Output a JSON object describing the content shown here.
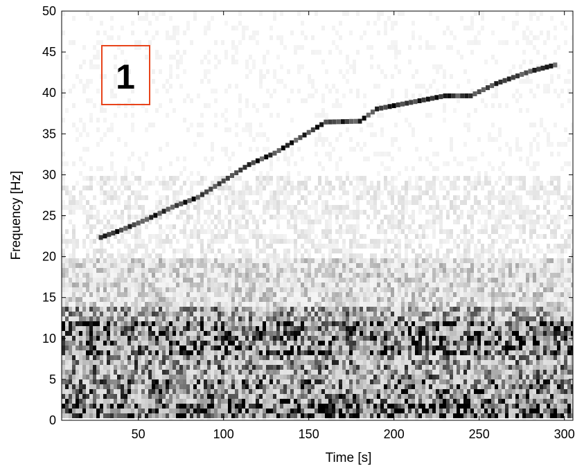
{
  "chart_data": {
    "type": "heatmap",
    "title": "",
    "xlabel": "Time [s]",
    "ylabel": "Frequency [Hz]",
    "xlim": [
      5,
      305
    ],
    "ylim": [
      0,
      50
    ],
    "xticks": [
      50,
      100,
      150,
      200,
      250,
      300
    ],
    "yticks": [
      0,
      5,
      10,
      15,
      20,
      25,
      30,
      35,
      40,
      45,
      50
    ],
    "colormap": "grayscale (white = low, black = high)",
    "grid": false,
    "annotation": {
      "text": "1",
      "box_color": "#e8431a"
    },
    "tonal_trace": {
      "description": "upward-sweeping tone",
      "points": [
        {
          "x": 28,
          "y": 22.3
        },
        {
          "x": 40,
          "y": 23.2
        },
        {
          "x": 55,
          "y": 24.5
        },
        {
          "x": 70,
          "y": 26.0
        },
        {
          "x": 85,
          "y": 27.2
        },
        {
          "x": 100,
          "y": 29.2
        },
        {
          "x": 115,
          "y": 31.2
        },
        {
          "x": 130,
          "y": 32.6
        },
        {
          "x": 145,
          "y": 34.5
        },
        {
          "x": 160,
          "y": 36.4
        },
        {
          "x": 180,
          "y": 36.5
        },
        {
          "x": 190,
          "y": 38.0
        },
        {
          "x": 210,
          "y": 38.8
        },
        {
          "x": 230,
          "y": 39.6
        },
        {
          "x": 245,
          "y": 39.6
        },
        {
          "x": 260,
          "y": 41.1
        },
        {
          "x": 280,
          "y": 42.6
        },
        {
          "x": 297,
          "y": 43.5
        }
      ]
    },
    "noise_profile": {
      "description": "broadband noise intensity by frequency band (0 = white, 1 = black)",
      "bands": [
        {
          "f_min": 0,
          "f_max": 2,
          "intensity": 0.9
        },
        {
          "f_min": 2,
          "f_max": 5,
          "intensity": 0.6
        },
        {
          "f_min": 5,
          "f_max": 8,
          "intensity": 0.5
        },
        {
          "f_min": 8,
          "f_max": 12,
          "intensity": 0.7
        },
        {
          "f_min": 12,
          "f_max": 14,
          "intensity": 0.45
        },
        {
          "f_min": 14,
          "f_max": 20,
          "intensity": 0.2
        },
        {
          "f_min": 20,
          "f_max": 30,
          "intensity": 0.08
        },
        {
          "f_min": 30,
          "f_max": 50,
          "intensity": 0.03
        }
      ]
    }
  }
}
